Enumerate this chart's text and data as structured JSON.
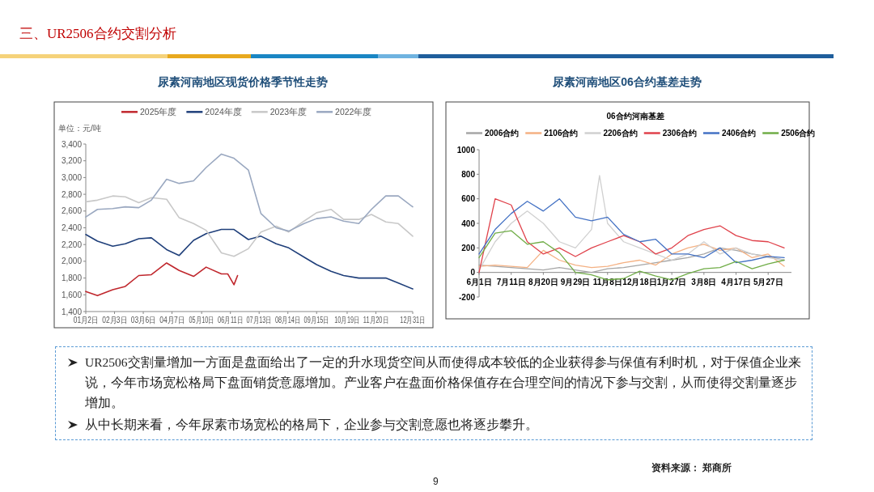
{
  "chart_data": [
    {
      "type": "line",
      "title": "尿素河南地区现货价格季节性走势",
      "ylabel": "单位：元/吨",
      "legend": "top",
      "x": [
        "--01-02",
        "--01-15",
        "--02-01",
        "--02-15",
        "--03-01",
        "--03-15",
        "--04-01",
        "--04-15",
        "--05-01",
        "--05-15",
        "--06-01",
        "--06-15",
        "--07-01",
        "--07-15",
        "--08-01",
        "--08-15",
        "--09-01",
        "--09-15",
        "--10-01",
        "--10-15",
        "--11-01",
        "--11-15",
        "--12-01",
        "--12-15",
        "--12-31"
      ],
      "xlim": [
        "--01-02",
        "--12-31"
      ],
      "xticks": [
        {
          "value": "--01-02",
          "label": "01月2日"
        },
        {
          "value": "--02-03",
          "label": "02月3日"
        },
        {
          "value": "--03-06",
          "label": "03月6日"
        },
        {
          "value": "--04-07",
          "label": "04月7日"
        },
        {
          "value": "--05-10",
          "label": "05月10日"
        },
        {
          "value": "--06-11",
          "label": "06月11日"
        },
        {
          "value": "--07-13",
          "label": "07月13日"
        },
        {
          "value": "--08-14",
          "label": "08月14日"
        },
        {
          "value": "--09-15",
          "label": "09月15日"
        },
        {
          "value": "--10-19",
          "label": "10月19日"
        },
        {
          "value": "--11-20",
          "label": "11月20日"
        },
        {
          "value": "--12-31",
          "label": "12月31日"
        }
      ],
      "ylim": [
        1400,
        3400
      ],
      "yticks": [
        {
          "value": 1400,
          "label": "1,400"
        },
        {
          "value": 1600,
          "label": "1,600"
        },
        {
          "value": 1800,
          "label": "1,800"
        },
        {
          "value": 2000,
          "label": "2,000"
        },
        {
          "value": 2200,
          "label": "2,200"
        },
        {
          "value": 2400,
          "label": "2,400"
        },
        {
          "value": 2600,
          "label": "2,600"
        },
        {
          "value": 2800,
          "label": "2,800"
        },
        {
          "value": 3000,
          "label": "3,000"
        },
        {
          "value": 3200,
          "label": "3,200"
        },
        {
          "value": 3400,
          "label": "3,400"
        }
      ],
      "series": [
        {
          "name": "2025年度",
          "color": "#c0272d",
          "x": [
            "--01-02",
            "--01-15",
            "--02-01",
            "--02-15",
            "--03-01",
            "--03-15",
            "--04-01",
            "--04-15",
            "--05-01",
            "--05-15",
            "--06-01",
            "--06-08",
            "--06-15",
            "--06-19"
          ],
          "values": [
            1640,
            1590,
            1660,
            1700,
            1830,
            1840,
            1980,
            1890,
            1820,
            1930,
            1850,
            1850,
            1720,
            1830
          ]
        },
        {
          "name": "2024年度",
          "color": "#1f3f7a",
          "values": [
            2320,
            2240,
            2180,
            2210,
            2270,
            2280,
            2140,
            2070,
            2250,
            2330,
            2380,
            2380,
            2260,
            2300,
            2210,
            2160,
            2050,
            1960,
            1880,
            1830,
            1800,
            1800,
            1800,
            1740,
            1670
          ]
        },
        {
          "name": "2023年度",
          "color": "#c8c8c8",
          "values": [
            2710,
            2730,
            2780,
            2770,
            2700,
            2760,
            2740,
            2520,
            2450,
            2370,
            2100,
            2060,
            2150,
            2350,
            2420,
            2350,
            2480,
            2580,
            2620,
            2500,
            2500,
            2560,
            2470,
            2450,
            2300
          ]
        },
        {
          "name": "2022年度",
          "color": "#9aa8c0",
          "values": [
            2530,
            2620,
            2630,
            2650,
            2640,
            2730,
            2980,
            2930,
            2960,
            3120,
            3280,
            3230,
            3090,
            2570,
            2400,
            2360,
            2450,
            2510,
            2530,
            2480,
            2450,
            2620,
            2780,
            2780,
            2650
          ]
        }
      ]
    },
    {
      "type": "line",
      "title": "尿素河南地区06合约基差走势",
      "subtitle": "06合约河南基差",
      "legend": "top",
      "x": [
        "2024-06-01",
        "2024-06-21",
        "2024-07-11",
        "2024-07-31",
        "2024-08-20",
        "2024-09-09",
        "2024-09-29",
        "2024-10-19",
        "2024-11-08",
        "2024-11-28",
        "2024-12-18",
        "2025-01-07",
        "2025-01-27",
        "2025-02-16",
        "2025-03-08",
        "2025-03-28",
        "2025-04-17",
        "2025-05-07",
        "2025-05-27",
        "2025-06-16"
      ],
      "xlim": [
        "2024-06-01",
        "2025-06-25"
      ],
      "xticks": [
        {
          "value": "2024-06-01",
          "label": "6月1日"
        },
        {
          "value": "2024-07-11",
          "label": "7月11日"
        },
        {
          "value": "2024-08-20",
          "label": "8月20日"
        },
        {
          "value": "2024-09-29",
          "label": "9月29日"
        },
        {
          "value": "2024-11-08",
          "label": "11月8日"
        },
        {
          "value": "2024-12-18",
          "label": "12月18日"
        },
        {
          "value": "2025-01-27",
          "label": "1月27日"
        },
        {
          "value": "2025-03-08",
          "label": "3月8日"
        },
        {
          "value": "2025-04-17",
          "label": "4月17日"
        },
        {
          "value": "2025-05-27",
          "label": "5月27日"
        }
      ],
      "ylim": [
        -200,
        1000
      ],
      "yticks": [
        -200,
        0,
        200,
        400,
        600,
        800,
        1000
      ],
      "series": [
        {
          "name": "2006合约",
          "color": "#a6a6a6",
          "values": [
            60,
            50,
            40,
            30,
            20,
            40,
            20,
            0,
            30,
            40,
            60,
            80,
            100,
            120,
            150,
            200,
            180,
            150,
            130,
            100
          ]
        },
        {
          "name": "2106合约",
          "color": "#f4b183",
          "values": [
            50,
            60,
            50,
            40,
            180,
            100,
            60,
            40,
            50,
            80,
            100,
            60,
            150,
            200,
            230,
            180,
            200,
            120,
            150,
            50
          ]
        },
        {
          "name": "2206合约",
          "color": "#d0d0d0",
          "x": [
            "2024-06-01",
            "2024-06-21",
            "2024-07-11",
            "2024-07-31",
            "2024-08-20",
            "2024-09-09",
            "2024-09-29",
            "2024-10-19",
            "2024-10-29",
            "2024-11-08",
            "2024-11-28",
            "2024-12-18",
            "2025-01-07",
            "2025-01-27",
            "2025-02-16",
            "2025-03-08",
            "2025-03-28",
            "2025-04-17",
            "2025-05-07",
            "2025-05-27",
            "2025-06-16"
          ],
          "values": [
            20,
            250,
            400,
            500,
            400,
            250,
            200,
            350,
            790,
            400,
            250,
            200,
            150,
            100,
            150,
            250,
            150,
            200,
            150,
            120,
            100
          ]
        },
        {
          "name": "2306合约",
          "color": "#e0424b",
          "values": [
            0,
            600,
            550,
            250,
            150,
            200,
            130,
            200,
            250,
            300,
            250,
            150,
            200,
            300,
            350,
            380,
            300,
            260,
            250,
            200
          ]
        },
        {
          "name": "2406合约",
          "color": "#4472c4",
          "values": [
            150,
            350,
            480,
            580,
            500,
            600,
            450,
            420,
            450,
            310,
            250,
            270,
            150,
            150,
            120,
            200,
            80,
            100,
            130,
            120
          ]
        },
        {
          "name": "2506合约",
          "color": "#70ad47",
          "values": [
            120,
            320,
            340,
            230,
            250,
            160,
            0,
            -20,
            -60,
            -50,
            10,
            -30,
            -60,
            -10,
            30,
            40,
            90,
            30,
            70,
            100
          ]
        }
      ]
    },
    {
      "type": "other",
      "title": "三、UR2506合约交割分析",
      "annotations": [
        "UR2506交割量增加一方面是盘面给出了一定的升水现货空间从而使得成本较低的企业获得参与保值有利时机，对于保值企业来说，今年市场宽松格局下盘面销货意愿增加。产业客户在盘面价格保值存在合理空间的情况下参与交割，从而使得交割量逐步增加。",
        "从中长期来看，今年尿素市场宽松的格局下，企业参与交割意愿也将逐步攀升。",
        "资料来源： 郑商所",
        "9"
      ]
    }
  ]
}
